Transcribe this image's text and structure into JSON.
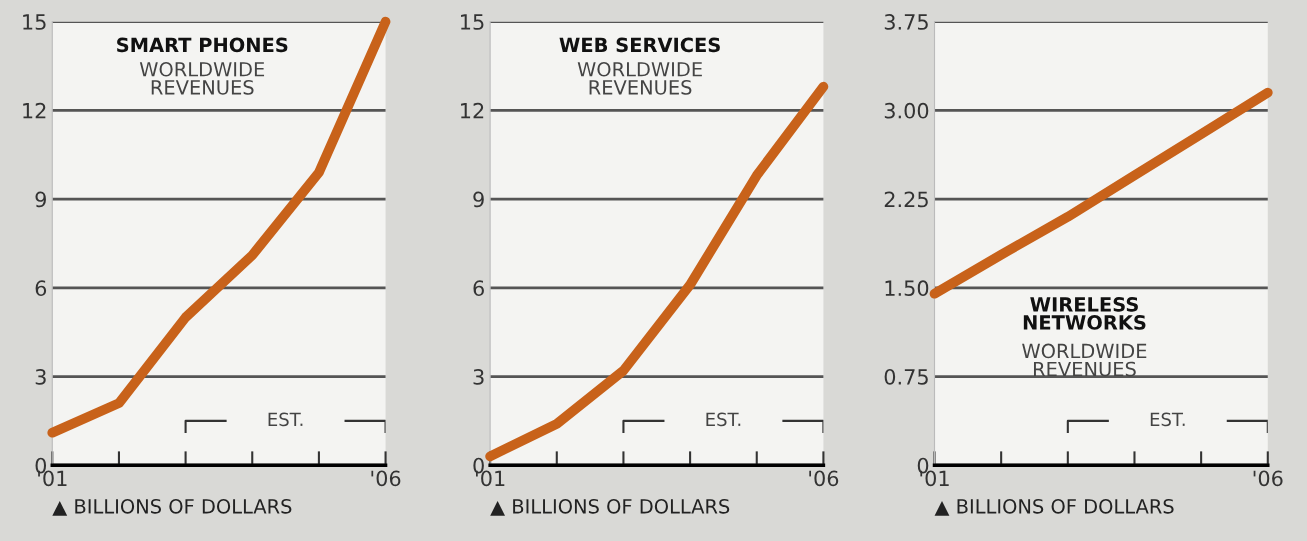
{
  "chart_data": [
    {
      "type": "line",
      "title": "SMART PHONES",
      "subtitle": "WORLDWIDE\nREVENUES",
      "xlabel": "▲ BILLIONS OF DOLLARS",
      "categories": [
        "'01",
        null,
        null,
        null,
        null,
        "'06"
      ],
      "series": [
        {
          "color": "#c8621a",
          "values": [
            1.1,
            2.1,
            5.0,
            7.1,
            9.9,
            15.0
          ]
        }
      ],
      "ylim": [
        0,
        15
      ],
      "yticks": [
        0,
        3,
        6,
        9,
        12,
        15
      ],
      "grid": "y",
      "annotations": [
        "EST."
      ]
    },
    {
      "type": "line",
      "title": "WEB SERVICES",
      "subtitle": "WORLDWIDE\nREVENUES",
      "xlabel": "▲ BILLIONS OF DOLLARS",
      "categories": [
        "'01",
        null,
        null,
        null,
        null,
        "'06"
      ],
      "series": [
        {
          "color": "#c8621a",
          "values": [
            0.3,
            1.4,
            3.2,
            6.1,
            9.8,
            12.8
          ]
        }
      ],
      "ylim": [
        0,
        15
      ],
      "yticks": [
        0,
        3,
        6,
        9,
        12,
        15
      ],
      "grid": "y",
      "annotations": [
        "EST."
      ]
    },
    {
      "type": "line",
      "title": "WIRELESS\nNETWORKS",
      "subtitle": "WORLDWIDE\nREVENUES",
      "xlabel": "▲ BILLIONS OF DOLLARS",
      "categories": [
        "'01",
        null,
        null,
        null,
        null,
        "'06"
      ],
      "series": [
        {
          "color": "#c8621a",
          "values": [
            1.45,
            1.78,
            2.1,
            2.45,
            2.8,
            3.15
          ]
        }
      ],
      "ylim": [
        0,
        3.75
      ],
      "yticks": [
        0,
        0.75,
        {
          "value": 1.5,
          "label": "1.50"
        },
        2.25,
        {
          "value": 3.0,
          "label": "3.00"
        },
        3.75
      ],
      "grid": "y",
      "annotations": [
        "EST."
      ]
    }
  ]
}
